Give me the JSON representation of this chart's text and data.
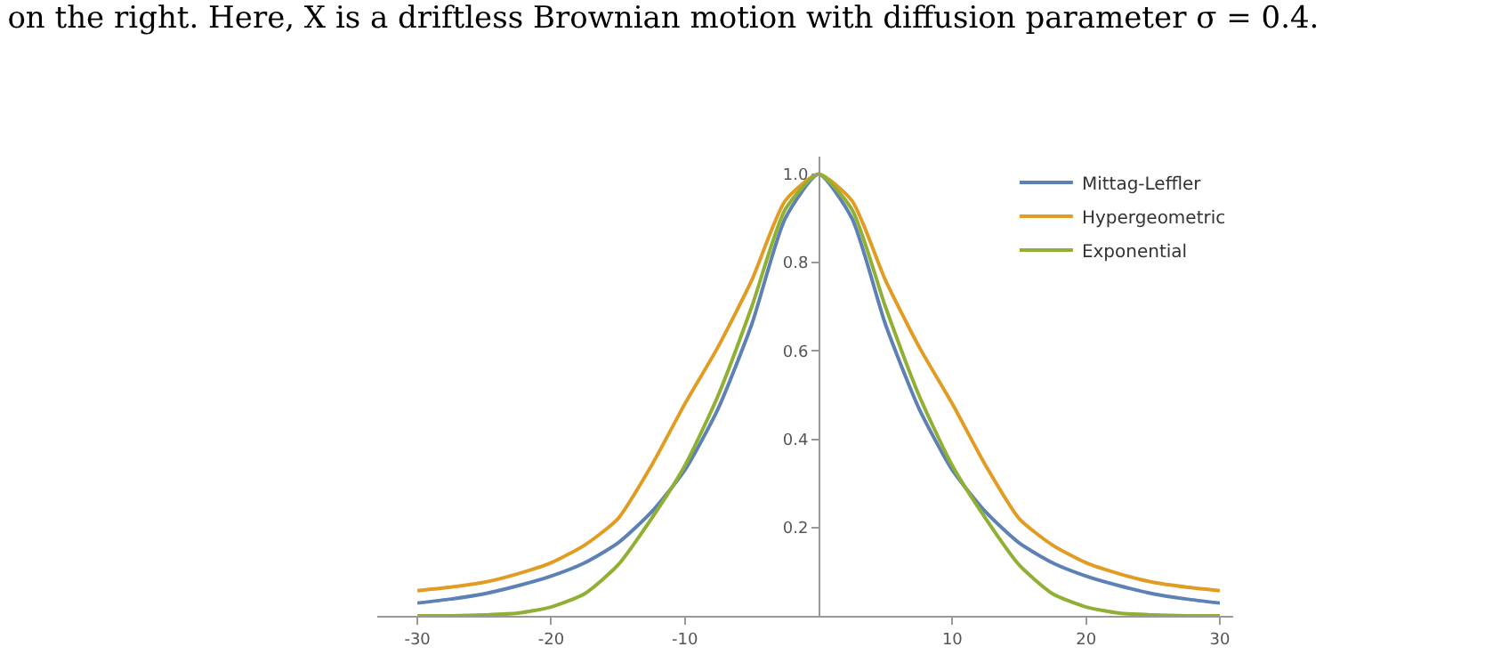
{
  "chart_data": {
    "type": "line",
    "title": "on the right. Here, X is a driftless Brownian motion with diffusion parameter σ = 0.4.",
    "x": [
      -30,
      -27.5,
      -25,
      -22.5,
      -20,
      -17.5,
      -15,
      -12.5,
      -10,
      -7.5,
      -5,
      -2.5,
      0,
      2.5,
      5,
      7.5,
      10,
      12.5,
      15,
      17.5,
      20,
      22.5,
      25,
      27.5,
      30
    ],
    "series": [
      {
        "name": "Mittag-Leffler",
        "color": "#5e81b5",
        "values": [
          0.029,
          0.038,
          0.05,
          0.068,
          0.09,
          0.12,
          0.165,
          0.235,
          0.33,
          0.47,
          0.66,
          0.9,
          1.0,
          0.9,
          0.66,
          0.47,
          0.33,
          0.235,
          0.165,
          0.12,
          0.09,
          0.068,
          0.05,
          0.038,
          0.029
        ]
      },
      {
        "name": "Hypergeometric",
        "color": "#e19c24",
        "values": [
          0.057,
          0.065,
          0.076,
          0.095,
          0.12,
          0.16,
          0.22,
          0.34,
          0.48,
          0.61,
          0.76,
          0.94,
          1.0,
          0.94,
          0.76,
          0.61,
          0.48,
          0.34,
          0.22,
          0.16,
          0.12,
          0.095,
          0.076,
          0.065,
          0.057
        ]
      },
      {
        "name": "Exponential",
        "color": "#8fb032",
        "values": [
          0,
          0,
          0.002,
          0.006,
          0.02,
          0.05,
          0.115,
          0.22,
          0.34,
          0.5,
          0.7,
          0.92,
          1.0,
          0.92,
          0.7,
          0.5,
          0.34,
          0.22,
          0.115,
          0.05,
          0.02,
          0.006,
          0.002,
          0,
          0
        ]
      }
    ],
    "xlim": [
      -33,
      31
    ],
    "ylim": [
      0,
      1.04
    ],
    "xticks": [
      -30,
      -20,
      -10,
      10,
      20,
      30
    ],
    "yticks": [
      0.2,
      0.4,
      0.6,
      0.8,
      {
        "value": 1,
        "label": "1.0"
      }
    ],
    "legend": "top right",
    "marker": "none",
    "line_style": "solid"
  }
}
